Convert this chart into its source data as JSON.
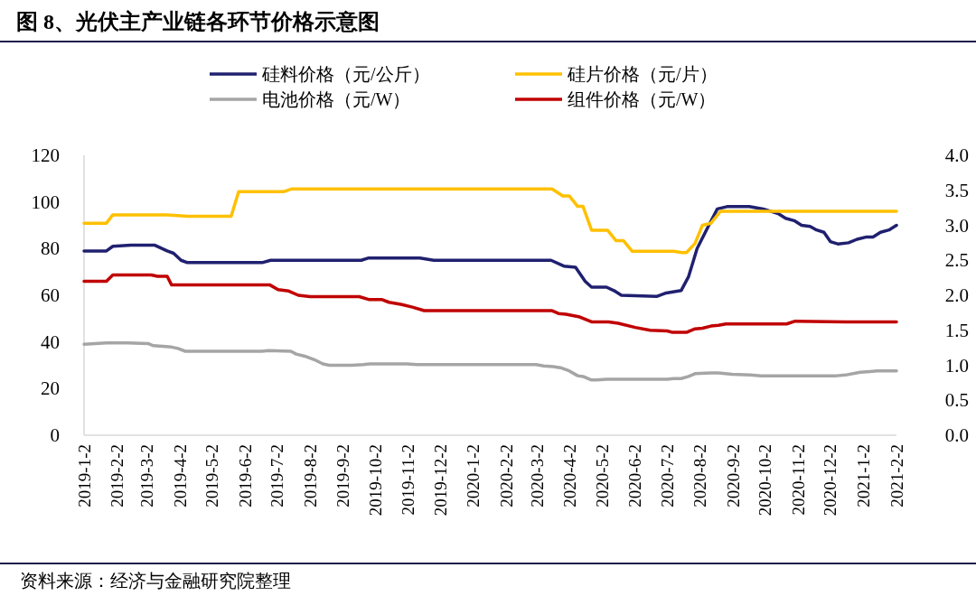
{
  "chart_data": {
    "type": "line",
    "title": "图 8、光伏主产业链各环节价格示意图",
    "annotations": [
      "资料来源：经济与金融研究院整理"
    ],
    "xlim": [
      "2019-01-02",
      "2021-02-02"
    ],
    "xticks": [
      {
        "value": "2019-01-02",
        "label": "2019-1-2"
      },
      {
        "value": "2019-02-02",
        "label": "2019-2-2"
      },
      {
        "value": "2019-03-02",
        "label": "2019-3-2"
      },
      {
        "value": "2019-04-02",
        "label": "2019-4-2"
      },
      {
        "value": "2019-05-02",
        "label": "2019-5-2"
      },
      {
        "value": "2019-06-02",
        "label": "2019-6-2"
      },
      {
        "value": "2019-07-02",
        "label": "2019-7-2"
      },
      {
        "value": "2019-08-02",
        "label": "2019-8-2"
      },
      {
        "value": "2019-09-02",
        "label": "2019-9-2"
      },
      {
        "value": "2019-10-02",
        "label": "2019-10-2"
      },
      {
        "value": "2019-11-02",
        "label": "2019-11-2"
      },
      {
        "value": "2019-12-02",
        "label": "2019-12-2"
      },
      {
        "value": "2020-01-02",
        "label": "2020-1-2"
      },
      {
        "value": "2020-02-02",
        "label": "2020-2-2"
      },
      {
        "value": "2020-03-02",
        "label": "2020-3-2"
      },
      {
        "value": "2020-04-02",
        "label": "2020-4-2"
      },
      {
        "value": "2020-05-02",
        "label": "2020-5-2"
      },
      {
        "value": "2020-06-02",
        "label": "2020-6-2"
      },
      {
        "value": "2020-07-02",
        "label": "2020-7-2"
      },
      {
        "value": "2020-08-02",
        "label": "2020-8-2"
      },
      {
        "value": "2020-09-02",
        "label": "2020-9-2"
      },
      {
        "value": "2020-10-02",
        "label": "2020-10-2"
      },
      {
        "value": "2020-11-02",
        "label": "2020-11-2"
      },
      {
        "value": "2020-12-02",
        "label": "2020-12-2"
      },
      {
        "value": "2021-01-02",
        "label": "2021-1-2"
      },
      {
        "value": "2021-02-02",
        "label": "2021-2-2"
      }
    ],
    "ylim": [
      0,
      120
    ],
    "yticks": [
      0,
      20,
      40,
      60,
      80,
      100,
      120
    ],
    "y2lim": [
      0,
      4
    ],
    "y2ticks": [
      {
        "value": 0,
        "label": "0.0"
      },
      {
        "value": 0.5,
        "label": "0.5"
      },
      {
        "value": 1,
        "label": "1.0"
      },
      {
        "value": 1.5,
        "label": "1.5"
      },
      {
        "value": 2,
        "label": "2.0"
      },
      {
        "value": 2.5,
        "label": "2.5"
      },
      {
        "value": 3,
        "label": "3.0"
      },
      {
        "value": 3.5,
        "label": "3.5"
      },
      {
        "value": 4,
        "label": "4.0"
      }
    ],
    "grid": false,
    "legend": "top",
    "marker": "none",
    "line_style": "solid",
    "series": [
      {
        "name": "硅料价格（元/公斤）",
        "color": "#202070",
        "x": [
          "2019-01-02",
          "2019-01-23",
          "2019-01-29",
          "2019-02-15",
          "2019-03-09",
          "2019-03-21",
          "2019-03-27",
          "2019-04-03",
          "2019-04-09",
          "2019-06-18",
          "2019-06-26",
          "2019-09-19",
          "2019-09-26",
          "2019-11-13",
          "2019-11-26",
          "2020-03-15",
          "2020-03-27",
          "2020-04-07",
          "2020-04-16",
          "2020-04-22",
          "2020-05-06",
          "2020-05-13",
          "2020-05-20",
          "2020-06-22",
          "2020-07-01",
          "2020-07-15",
          "2020-07-22",
          "2020-07-30",
          "2020-08-10",
          "2020-08-18",
          "2020-08-27",
          "2020-09-17",
          "2020-09-30",
          "2020-10-14",
          "2020-10-21",
          "2020-10-29",
          "2020-11-05",
          "2020-11-13",
          "2020-11-19",
          "2020-11-26",
          "2020-12-02",
          "2020-12-09",
          "2020-12-19",
          "2020-12-27",
          "2021-01-05",
          "2021-01-11",
          "2021-01-18",
          "2021-01-26",
          "2021-02-02"
        ],
        "values": [
          79,
          79,
          81,
          81.5,
          81.5,
          79,
          78,
          75,
          74,
          74,
          75,
          75,
          76,
          76,
          75,
          75,
          72.5,
          72,
          66,
          63.5,
          63.5,
          62,
          60,
          59.5,
          61,
          62,
          68,
          80,
          90,
          97,
          98,
          98,
          97,
          95,
          93,
          92,
          90,
          89.5,
          88,
          87,
          83,
          82,
          82.5,
          84,
          85,
          85,
          87,
          88,
          90
        ]
      },
      {
        "name": "硅片价格（元/片）",
        "color": "#ffc000",
        "axis": "y2",
        "x": [
          "2019-01-02",
          "2019-01-23",
          "2019-01-29",
          "2019-03-21",
          "2019-04-09",
          "2019-05-20",
          "2019-05-27",
          "2019-07-08",
          "2019-07-16",
          "2020-03-16",
          "2020-03-26",
          "2020-04-01",
          "2020-04-09",
          "2020-04-14",
          "2020-04-22",
          "2020-05-07",
          "2020-05-15",
          "2020-05-22",
          "2020-05-30",
          "2020-07-08",
          "2020-07-16",
          "2020-07-20",
          "2020-07-28",
          "2020-08-04",
          "2020-08-12",
          "2020-08-21",
          "2021-02-02"
        ],
        "values": [
          3.03,
          3.03,
          3.15,
          3.15,
          3.13,
          3.13,
          3.48,
          3.48,
          3.52,
          3.52,
          3.42,
          3.42,
          3.27,
          3.27,
          2.93,
          2.93,
          2.78,
          2.78,
          2.63,
          2.63,
          2.61,
          2.61,
          2.74,
          3.0,
          3.03,
          3.2,
          3.2
        ]
      },
      {
        "name": "电池价格（元/W）",
        "color": "#a5a5a5",
        "axis": "y2",
        "x": [
          "2019-01-02",
          "2019-01-23",
          "2019-02-12",
          "2019-03-03",
          "2019-03-08",
          "2019-03-25",
          "2019-03-31",
          "2019-04-07",
          "2019-06-18",
          "2019-06-24",
          "2019-07-15",
          "2019-07-20",
          "2019-07-28",
          "2019-08-06",
          "2019-08-14",
          "2019-08-20",
          "2019-09-10",
          "2019-09-21",
          "2019-09-27",
          "2019-11-01",
          "2019-11-10",
          "2020-03-01",
          "2020-03-08",
          "2020-03-17",
          "2020-03-25",
          "2020-04-01",
          "2020-04-09",
          "2020-04-14",
          "2020-04-22",
          "2020-04-27",
          "2020-05-06",
          "2020-07-02",
          "2020-07-08",
          "2020-07-15",
          "2020-07-22",
          "2020-07-28",
          "2020-08-12",
          "2020-08-19",
          "2020-09-01",
          "2020-09-18",
          "2020-09-28",
          "2020-12-08",
          "2020-12-16",
          "2020-12-30",
          "2021-01-08",
          "2021-01-15",
          "2021-02-02"
        ],
        "values": [
          1.3,
          1.32,
          1.32,
          1.31,
          1.28,
          1.26,
          1.24,
          1.2,
          1.2,
          1.21,
          1.2,
          1.16,
          1.13,
          1.08,
          1.02,
          1.0,
          1.0,
          1.01,
          1.02,
          1.02,
          1.01,
          1.01,
          0.99,
          0.98,
          0.96,
          0.92,
          0.85,
          0.84,
          0.79,
          0.79,
          0.8,
          0.8,
          0.81,
          0.81,
          0.84,
          0.88,
          0.89,
          0.89,
          0.87,
          0.86,
          0.85,
          0.85,
          0.86,
          0.9,
          0.91,
          0.92,
          0.92
        ]
      },
      {
        "name": "组件价格（元/W）",
        "color": "#c00000",
        "axis": "y2",
        "x": [
          "2019-01-02",
          "2019-01-23",
          "2019-01-29",
          "2019-03-06",
          "2019-03-12",
          "2019-03-21",
          "2019-03-25",
          "2019-06-25",
          "2019-07-03",
          "2019-07-13",
          "2019-07-22",
          "2019-08-02",
          "2019-09-17",
          "2019-09-26",
          "2019-10-08",
          "2019-10-15",
          "2019-10-26",
          "2019-11-06",
          "2019-11-17",
          "2020-03-16",
          "2020-03-22",
          "2020-03-29",
          "2020-04-11",
          "2020-04-22",
          "2020-05-08",
          "2020-05-17",
          "2020-06-02",
          "2020-06-16",
          "2020-07-02",
          "2020-07-07",
          "2020-07-20",
          "2020-07-28",
          "2020-08-04",
          "2020-08-12",
          "2020-08-19",
          "2020-08-26",
          "2020-10-22",
          "2020-10-30",
          "2020-12-16",
          "2021-02-02"
        ],
        "values": [
          2.2,
          2.2,
          2.29,
          2.29,
          2.27,
          2.27,
          2.15,
          2.15,
          2.08,
          2.06,
          2.0,
          1.98,
          1.98,
          1.94,
          1.94,
          1.9,
          1.87,
          1.83,
          1.78,
          1.78,
          1.74,
          1.73,
          1.69,
          1.62,
          1.62,
          1.6,
          1.54,
          1.5,
          1.49,
          1.47,
          1.47,
          1.52,
          1.53,
          1.56,
          1.57,
          1.59,
          1.59,
          1.63,
          1.62,
          1.62
        ]
      }
    ]
  }
}
